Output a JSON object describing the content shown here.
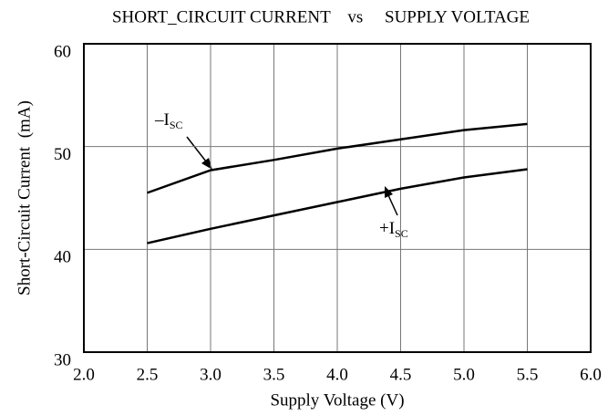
{
  "chart_data": {
    "type": "line",
    "title": "SHORT_CIRCUIT CURRENT    vs     SUPPLY VOLTAGE",
    "x_label": "Supply Voltage (V)",
    "y_label": "Short-Circuit Current  (mA)",
    "x": [
      2.5,
      3.0,
      3.5,
      4.0,
      4.5,
      5.0,
      5.5
    ],
    "series": [
      {
        "name": "–I",
        "subscript": "SC",
        "color": "#000000",
        "values": [
          45.5,
          47.7,
          48.7,
          49.8,
          50.7,
          51.6,
          52.2
        ]
      },
      {
        "name": "+I",
        "subscript": "SC",
        "color": "#000000",
        "values": [
          40.6,
          42.0,
          43.3,
          44.6,
          45.9,
          47.0,
          47.8
        ]
      }
    ],
    "xlim": [
      2.0,
      6.0
    ],
    "xticks": [
      {
        "value": 2,
        "label": "2.0"
      },
      2.5,
      {
        "value": 3,
        "label": "3.0"
      },
      3.5,
      {
        "value": 4,
        "label": "4.0"
      },
      4.5,
      {
        "value": 5,
        "label": "5.0"
      },
      5.5,
      {
        "value": 6,
        "label": "6.0"
      }
    ],
    "ylim": [
      30,
      60
    ],
    "yticks": [
      30,
      40,
      50,
      60
    ],
    "grid": true
  }
}
